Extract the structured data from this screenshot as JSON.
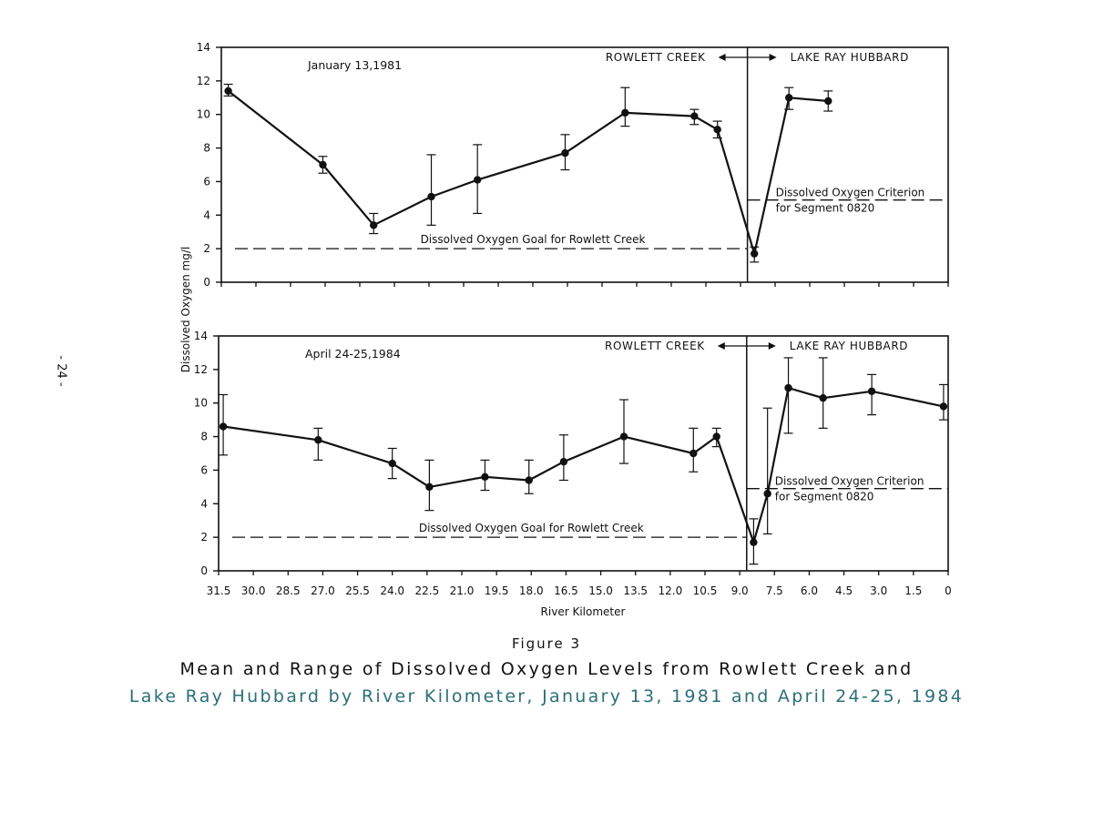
{
  "page_number": "- 24 -",
  "figure_label": "Figure 3",
  "caption_line1": "Mean and Range of Dissolved Oxygen Levels from Rowlett Creek and",
  "caption_line2": "Lake Ray Hubbard by River Kilometer, January 13, 1981 and April 24-25, 1984",
  "colors": {
    "ink": "#111111",
    "caption_accent": "#2b6f78"
  },
  "chart_data": [
    {
      "type": "line",
      "title": "January 13,1981",
      "xlabel": "River Kilometer",
      "ylabel": "Dissolved Oxygen mg/l",
      "xlim": [
        31.5,
        0
      ],
      "ylim": [
        0,
        14
      ],
      "yticks": [
        "0",
        "2",
        "4",
        "6",
        "8",
        "10",
        "12",
        "14"
      ],
      "xticks": [
        "31.5",
        "30.0",
        "28.5",
        "27.0",
        "25.5",
        "24.0",
        "22.5",
        "21.0",
        "19.5",
        "18.0",
        "16.5",
        "15.0",
        "13.5",
        "12.0",
        "10.5",
        "9.0",
        "7.5",
        "6.0",
        "4.5",
        "3.0",
        "1.5",
        "0"
      ],
      "divider_x": 8.7,
      "region_labels": {
        "left": "ROWLETT CREEK",
        "right": "LAKE RAY HUBBARD"
      },
      "goal": {
        "y": 2,
        "label": "Dissolved Oxygen Goal for Rowlett Creek"
      },
      "criterion": {
        "y": 4.9,
        "label1": "Dissolved Oxygen Criterion",
        "label2": "for Segment 0820"
      },
      "points": [
        {
          "x": 31.2,
          "y": 11.4,
          "lo": 11.1,
          "hi": 11.8
        },
        {
          "x": 27.1,
          "y": 7.0,
          "lo": 6.5,
          "hi": 7.5
        },
        {
          "x": 24.9,
          "y": 3.4,
          "lo": 2.9,
          "hi": 4.1
        },
        {
          "x": 22.4,
          "y": 5.1,
          "lo": 3.4,
          "hi": 7.6
        },
        {
          "x": 20.4,
          "y": 6.1,
          "lo": 4.1,
          "hi": 8.2
        },
        {
          "x": 16.6,
          "y": 7.7,
          "lo": 6.7,
          "hi": 8.8
        },
        {
          "x": 14.0,
          "y": 10.1,
          "lo": 9.3,
          "hi": 11.6
        },
        {
          "x": 11.0,
          "y": 9.9,
          "lo": 9.4,
          "hi": 10.3
        },
        {
          "x": 10.0,
          "y": 9.1,
          "lo": 8.6,
          "hi": 9.6
        },
        {
          "x": 8.4,
          "y": 1.7,
          "lo": 1.2,
          "hi": 2.1
        },
        {
          "x": 6.9,
          "y": 11.0,
          "lo": 10.3,
          "hi": 11.6
        },
        {
          "x": 5.2,
          "y": 10.8,
          "lo": 10.2,
          "hi": 11.4
        }
      ]
    },
    {
      "type": "line",
      "title": "April 24-25,1984",
      "xlabel": "River Kilometer",
      "ylabel": "Dissolved Oxygen mg/l",
      "xlim": [
        31.5,
        0
      ],
      "ylim": [
        0,
        14
      ],
      "yticks": [
        "0",
        "2",
        "4",
        "6",
        "8",
        "10",
        "12",
        "14"
      ],
      "xticks": [
        "31.5",
        "30.0",
        "28.5",
        "27.0",
        "25.5",
        "24.0",
        "22.5",
        "21.0",
        "19.5",
        "18.0",
        "16.5",
        "15.0",
        "13.5",
        "12.0",
        "10.5",
        "9.0",
        "7.5",
        "6.0",
        "4.5",
        "3.0",
        "1.5",
        "0"
      ],
      "divider_x": 8.7,
      "region_labels": {
        "left": "ROWLETT CREEK",
        "right": "LAKE RAY HUBBARD"
      },
      "goal": {
        "y": 2,
        "label": "Dissolved Oxygen Goal for Rowlett Creek"
      },
      "criterion": {
        "y": 4.9,
        "label1": "Dissolved Oxygen Criterion",
        "label2": "for Segment 0820"
      },
      "points": [
        {
          "x": 31.3,
          "y": 8.6,
          "lo": 6.9,
          "hi": 10.5
        },
        {
          "x": 27.2,
          "y": 7.8,
          "lo": 6.6,
          "hi": 8.5
        },
        {
          "x": 24.0,
          "y": 6.4,
          "lo": 5.5,
          "hi": 7.3
        },
        {
          "x": 22.4,
          "y": 5.0,
          "lo": 3.6,
          "hi": 6.6
        },
        {
          "x": 20.0,
          "y": 5.6,
          "lo": 4.8,
          "hi": 6.6
        },
        {
          "x": 18.1,
          "y": 5.4,
          "lo": 4.6,
          "hi": 6.6
        },
        {
          "x": 16.6,
          "y": 6.5,
          "lo": 5.4,
          "hi": 8.1
        },
        {
          "x": 14.0,
          "y": 8.0,
          "lo": 6.4,
          "hi": 10.2
        },
        {
          "x": 11.0,
          "y": 7.0,
          "lo": 5.9,
          "hi": 8.5
        },
        {
          "x": 10.0,
          "y": 8.0,
          "lo": 7.4,
          "hi": 8.5
        },
        {
          "x": 8.4,
          "y": 1.7,
          "lo": 0.4,
          "hi": 3.1
        },
        {
          "x": 7.8,
          "y": 4.6,
          "lo": 2.2,
          "hi": 9.7
        },
        {
          "x": 6.9,
          "y": 10.9,
          "lo": 8.2,
          "hi": 12.7
        },
        {
          "x": 5.4,
          "y": 10.3,
          "lo": 8.5,
          "hi": 12.7
        },
        {
          "x": 3.3,
          "y": 10.7,
          "lo": 9.3,
          "hi": 11.7
        },
        {
          "x": 0.2,
          "y": 9.8,
          "lo": 9.0,
          "hi": 11.1
        }
      ]
    }
  ]
}
